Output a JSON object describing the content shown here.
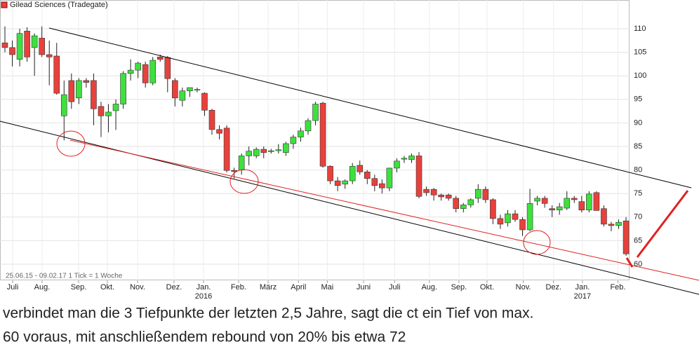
{
  "chart_data": {
    "type": "candlestick",
    "title": "Gilead Sciences (Tradegate)",
    "note": "25.06.15 - 09.02.17   1 Tick = 1 Woche",
    "up_color": "#3ee03e",
    "down_color": "#e8413c",
    "open": [
      107,
      106,
      103.5,
      109.5,
      106,
      108,
      104.5,
      104.2,
      91.5,
      99,
      95.3,
      99,
      99,
      93.5,
      91.5,
      92.6,
      94,
      100.5,
      101.2,
      102.4,
      98.5,
      104,
      103.9,
      99,
      94.8,
      96.8,
      97,
      96.3,
      92.7,
      88.6,
      88.9,
      79.9,
      80,
      83,
      83,
      84.4,
      83.9,
      84.1,
      83.7,
      85.6,
      87,
      88.3,
      90.5,
      94.2,
      80.8,
      77.7,
      77,
      77.7,
      81,
      79.6,
      78.2,
      77.1,
      76.2,
      80.4,
      82.3,
      82.2,
      83,
      75.9,
      75.9,
      74.7,
      74.7,
      74,
      71.8,
      72.6,
      74,
      75.9,
      73.7,
      69.7,
      68.8,
      70.7,
      69.5,
      67.3,
      73.4,
      74,
      71.8,
      71.5,
      71.9,
      74,
      73.3,
      71.5,
      75.2,
      71.8,
      68.5,
      68.2,
      69.2
    ],
    "high": [
      110.5,
      107.5,
      110,
      110.3,
      109,
      110.5,
      107.5,
      107,
      99,
      100.5,
      99.5,
      99.5,
      100.5,
      94.5,
      94,
      95,
      101,
      103.5,
      103,
      103,
      104,
      104.5,
      104.2,
      99.5,
      97.5,
      97.5,
      97.5,
      96.5,
      93,
      89.5,
      89.5,
      80.5,
      83.5,
      85,
      84.8,
      85,
      84.5,
      85.5,
      86,
      87.5,
      89,
      91,
      94.5,
      94.5,
      81,
      78.5,
      78,
      81.5,
      82,
      80,
      79,
      78,
      80.5,
      82.5,
      83,
      83.5,
      83.8,
      76.5,
      76.2,
      75,
      75,
      74.5,
      73,
      74,
      77,
      76.5,
      74,
      70.5,
      71.5,
      71.5,
      70,
      76,
      74.5,
      74.5,
      72.5,
      73,
      75.5,
      74.5,
      74.5,
      75.5,
      75.5,
      72.5,
      69,
      69.5,
      70
    ],
    "low": [
      105,
      102,
      102,
      103,
      100,
      104,
      98,
      96,
      86.3,
      93,
      94,
      97.5,
      89.5,
      87,
      88,
      88.5,
      93,
      99,
      99.5,
      97.5,
      98,
      103,
      96.5,
      93.5,
      93.5,
      95.5,
      96.5,
      91.5,
      87.5,
      86.5,
      79.5,
      78.2,
      79,
      81,
      82.5,
      82.5,
      83.5,
      83.5,
      83,
      84.5,
      86,
      87.5,
      89.5,
      80.5,
      77,
      75.5,
      76,
      77,
      79,
      77,
      75.5,
      75,
      75.5,
      79.5,
      81.5,
      81.5,
      74,
      74.5,
      73.5,
      73.5,
      73.5,
      71,
      71,
      72,
      73,
      73,
      68.5,
      67.5,
      68,
      69,
      66,
      67,
      72.5,
      72,
      70,
      70.5,
      71.5,
      73,
      71,
      71,
      71.5,
      68,
      67,
      67.5,
      61.8
    ],
    "close": [
      106,
      104.5,
      109,
      104,
      108.5,
      104.5,
      104,
      96.3,
      96,
      94.5,
      99,
      98.6,
      93,
      91.5,
      92.3,
      94,
      100.5,
      101.2,
      102.7,
      98.5,
      103.3,
      103.5,
      99.4,
      95.3,
      96.8,
      97.5,
      97.1,
      92.7,
      88.6,
      87.8,
      79.9,
      79.7,
      83,
      84,
      84.4,
      83.7,
      84.1,
      84.3,
      85.6,
      87,
      88.3,
      90.5,
      94,
      80.8,
      77.7,
      76.7,
      77.7,
      80.8,
      79.6,
      78.2,
      76.7,
      76.2,
      80.4,
      81.9,
      82.5,
      83,
      74.4,
      75.2,
      74.7,
      74.3,
      74,
      71.8,
      72.6,
      73.7,
      75.9,
      73.7,
      69.7,
      68.5,
      70.7,
      69.5,
      67.3,
      72.9,
      74,
      72.9,
      71.5,
      72.2,
      74,
      73.7,
      71.5,
      74.9,
      71.4,
      68.5,
      68.2,
      68.9,
      62.2
    ],
    "xlim": [
      -0.664,
      84.47
    ],
    "xticks": [
      {
        "value": 1.05,
        "label": "Juli"
      },
      {
        "value": 5.03,
        "label": "Aug."
      },
      {
        "value": 9.97,
        "label": "Sep."
      },
      {
        "value": 13.86,
        "label": "Okt."
      },
      {
        "value": 17.94,
        "label": "Nov."
      },
      {
        "value": 22.87,
        "label": "Dez."
      },
      {
        "value": 26.86,
        "label": "Jan.\n2016"
      },
      {
        "value": 31.6,
        "label": "Feb."
      },
      {
        "value": 35.6,
        "label": "März"
      },
      {
        "value": 39.7,
        "label": "April"
      },
      {
        "value": 43.6,
        "label": "Mai"
      },
      {
        "value": 48.5,
        "label": "Juni"
      },
      {
        "value": 52.7,
        "label": "Juli"
      },
      {
        "value": 57.4,
        "label": "Aug."
      },
      {
        "value": 61.4,
        "label": "Sep."
      },
      {
        "value": 65.2,
        "label": "Okt."
      },
      {
        "value": 70.1,
        "label": "Nov."
      },
      {
        "value": 74.2,
        "label": "Dez."
      },
      {
        "value": 78.1,
        "label": "Jan.\n2017"
      },
      {
        "value": 82.9,
        "label": "Feb."
      }
    ],
    "ylim": [
      56.58,
      116.1
    ],
    "yticks": [
      60,
      65,
      70,
      75,
      80,
      85,
      90,
      95,
      100,
      105,
      110
    ],
    "grid": true
  },
  "caption": [
    "verbindet man die 3 Tiefpunkte der letzten 2,5 Jahre, sagt die ct ein Tief von max.",
    "60 voraus, mit anschließendem rebound von 20% bis etwa 72"
  ]
}
